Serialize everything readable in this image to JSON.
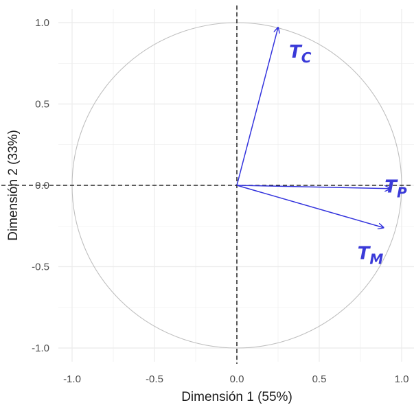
{
  "chart_data": {
    "type": "scatter",
    "subtype": "correlation-circle",
    "title": "",
    "xlabel": "Dimensión 1 (55%)",
    "ylabel": "Dimensión 2 (33%)",
    "xlim": [
      -1.0,
      1.0
    ],
    "ylim": [
      -1.0,
      1.0
    ],
    "x_ticks": [
      "-1.0",
      "-0.5",
      "0.0",
      "0.5",
      "1.0"
    ],
    "y_ticks": [
      "1.0",
      "0.5",
      "0.0",
      "-0.5",
      "-1.0"
    ],
    "grid": true,
    "unit_circle": true,
    "reference_lines": {
      "x": 0,
      "y": 0,
      "style": "dashed"
    },
    "vectors": [
      {
        "label_main": "T",
        "label_sub": "C",
        "x": 0.25,
        "y": 0.97
      },
      {
        "label_main": "T",
        "label_sub": "P",
        "x": 0.93,
        "y": -0.02
      },
      {
        "label_main": "T",
        "label_sub": "M",
        "x": 0.89,
        "y": -0.26
      }
    ],
    "colors": {
      "vector": "#3333dd",
      "circle": "#bfbfbf",
      "grid": "#ebebeb",
      "refline": "#000000"
    }
  }
}
